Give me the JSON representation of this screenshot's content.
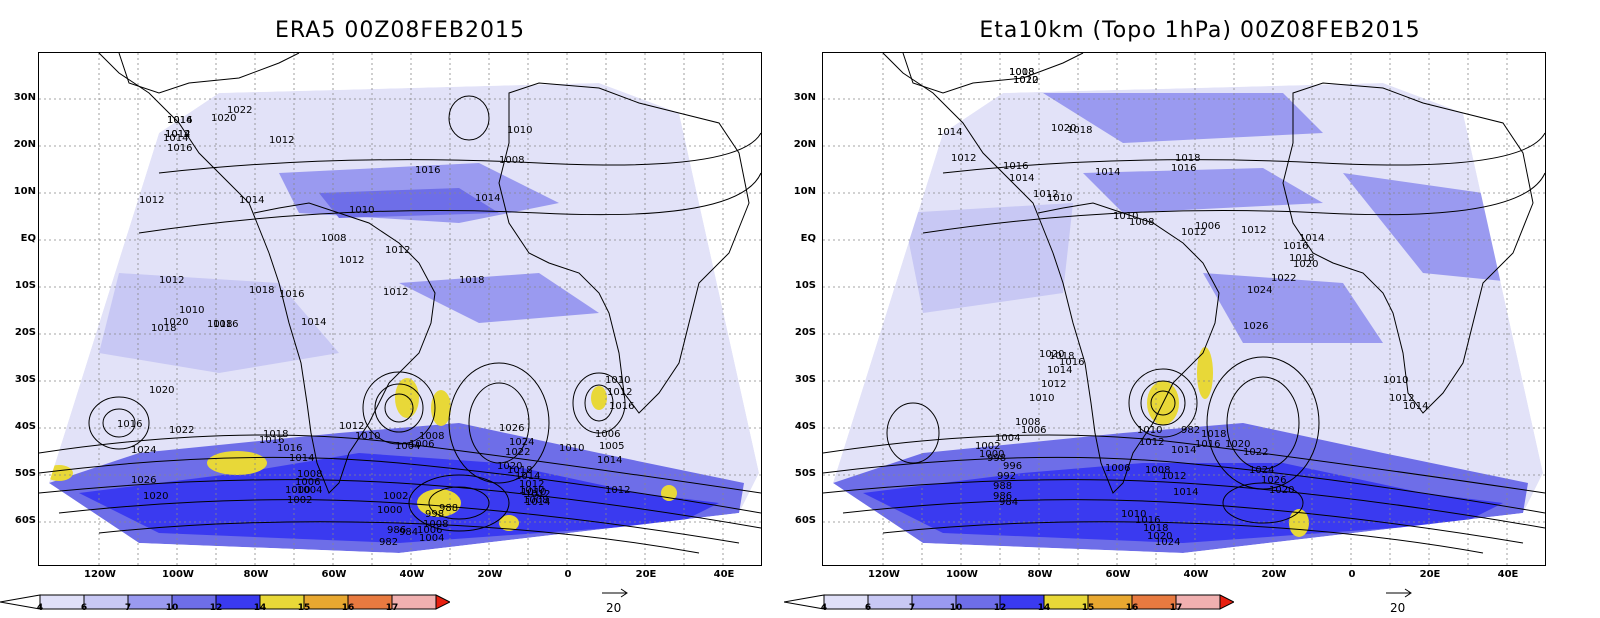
{
  "panels": [
    {
      "title": "ERA5 00Z08FEB2015",
      "contour_labels": [
        "1016",
        "1014",
        "1022",
        "1020",
        "1016",
        "1014",
        "1012",
        "1012",
        "1014",
        "1010",
        "1008",
        "1012",
        "1010",
        "1018",
        "1012",
        "1016",
        "1018",
        "1016",
        "1014",
        "1012",
        "1010",
        "1008",
        "1016",
        "1014",
        "1012",
        "1018",
        "1020",
        "1018",
        "1020",
        "1022",
        "1016",
        "1024",
        "1026",
        "1020",
        "1016",
        "1018",
        "1016",
        "1014",
        "1008",
        "1006",
        "1004",
        "1002",
        "1000",
        "1012",
        "1010",
        "1004",
        "1006",
        "1008",
        "1026",
        "1024",
        "1022",
        "1020",
        "1018",
        "1014",
        "1012",
        "1010",
        "1008",
        "1006",
        "1005",
        "1014",
        "1012",
        "1010",
        "1008",
        "1006",
        "1004",
        "1002",
        "1000",
        "998",
        "988",
        "986",
        "984",
        "982",
        "1010",
        "1012",
        "1014",
        "1010",
        "1012",
        "1016",
        "1014",
        "1012"
      ],
      "latitude_labels": [
        "30N",
        "20N",
        "10N",
        "EQ",
        "10S",
        "20S",
        "30S",
        "40S",
        "50S",
        "60S"
      ],
      "longitude_labels": [
        "120W",
        "100W",
        "80W",
        "60W",
        "40W",
        "20W",
        "0",
        "20E",
        "40E"
      ]
    },
    {
      "title": "Eta10km (Topo 1hPa) 00Z08FEB2015",
      "contour_labels": [
        "1018",
        "1022",
        "1020",
        "1018",
        "1014",
        "1012",
        "1016",
        "1014",
        "1012",
        "1010",
        "1018",
        "1016",
        "1014",
        "1012",
        "1010",
        "1008",
        "1006",
        "1012",
        "1014",
        "1016",
        "1018",
        "1020",
        "1022",
        "1024",
        "1026",
        "1020",
        "1018",
        "1016",
        "1014",
        "1012",
        "1010",
        "1008",
        "1006",
        "1004",
        "1002",
        "1000",
        "998",
        "996",
        "992",
        "988",
        "986",
        "984",
        "982",
        "1010",
        "1012",
        "1014",
        "1016",
        "1018",
        "1020",
        "1022",
        "1024",
        "1026",
        "1020",
        "1008",
        "1006",
        "1012",
        "1014",
        "1010",
        "1016",
        "1018",
        "1020",
        "1024",
        "1010",
        "1012",
        "1014",
        "1008",
        "1010"
      ],
      "latitude_labels": [
        "30N",
        "20N",
        "10N",
        "EQ",
        "10S",
        "20S",
        "30S",
        "40S",
        "50S",
        "60S"
      ],
      "longitude_labels": [
        "120W",
        "100W",
        "80W",
        "60W",
        "40W",
        "20W",
        "0",
        "20E",
        "40E"
      ]
    }
  ],
  "colorbar": {
    "tick_labels": [
      "4",
      "6",
      "7",
      "10",
      "12",
      "14",
      "15",
      "16",
      "17"
    ],
    "colors": [
      "#e0e0f8",
      "#c8c8f4",
      "#9a9af0",
      "#6e6ee8",
      "#3a3af0",
      "#e8d838",
      "#e8a830",
      "#e87a40",
      "#f0b0b0",
      "#e82010"
    ]
  },
  "reference_vector": {
    "label": "20"
  }
}
